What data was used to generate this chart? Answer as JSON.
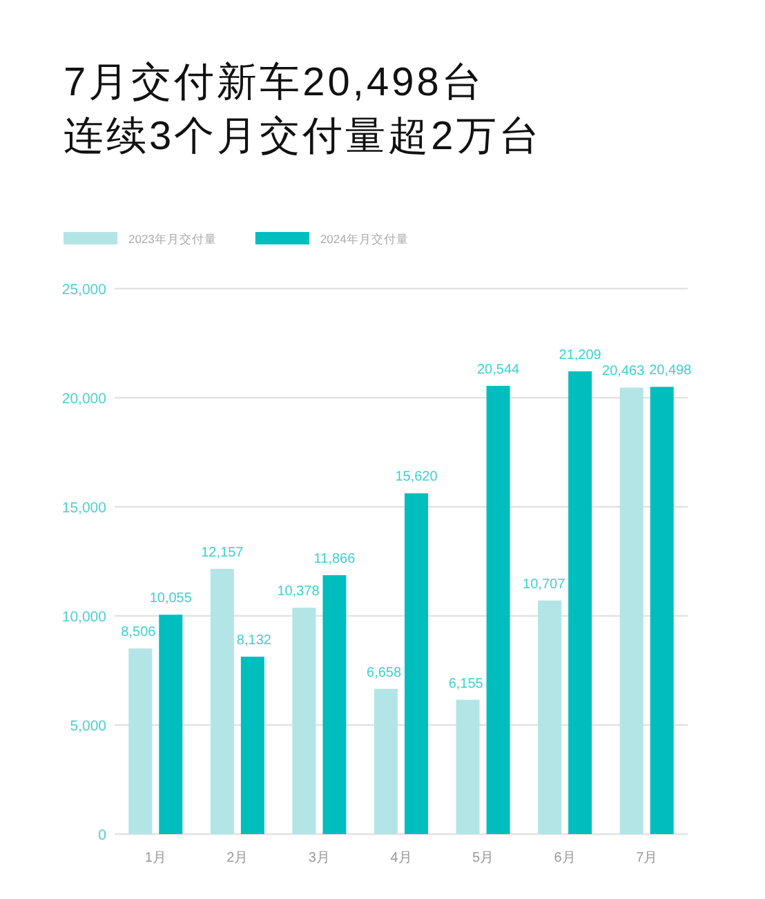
{
  "chart_data": {
    "type": "bar",
    "title": "7月交付新车20,498台",
    "subtitle": "连续3个月交付量超2万台",
    "categories": [
      "1月",
      "2月",
      "3月",
      "4月",
      "5月",
      "6月",
      "7月"
    ],
    "series": [
      {
        "name": "2023年月交付量",
        "color": "#b3e5e6",
        "values": [
          8506,
          12157,
          10378,
          6658,
          6155,
          10707,
          20463
        ],
        "value_labels": [
          "8,506",
          "12,157",
          "10,378",
          "6,658",
          "6,155",
          "10,707",
          "20,463"
        ]
      },
      {
        "name": "2024年月交付量",
        "color": "#00bebe",
        "values": [
          10055,
          8132,
          11866,
          15620,
          20544,
          21209,
          20498
        ],
        "value_labels": [
          "10,055",
          "8,132",
          "11,866",
          "15,620",
          "20,544",
          "21,209",
          "20,498"
        ]
      }
    ],
    "ylim": [
      0,
      25000
    ],
    "yticks": [
      0,
      {
        "value": 5000,
        "label": "5,000"
      },
      {
        "value": 10000,
        "label": "10,000"
      },
      {
        "value": 15000,
        "label": "15,000"
      },
      {
        "value": 20000,
        "label": "20,000"
      },
      {
        "value": 25000,
        "label": "25,000"
      }
    ],
    "grid": "y",
    "legend": "top left"
  }
}
